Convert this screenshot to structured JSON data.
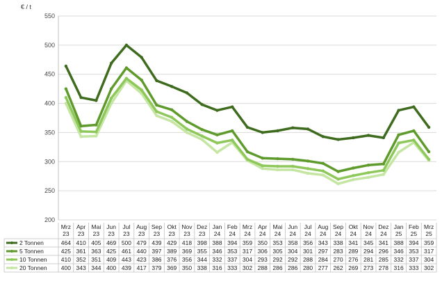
{
  "chart_data": {
    "type": "line",
    "ylabel": "€ / t",
    "ylim": [
      200,
      550
    ],
    "yticks": [
      200,
      250,
      300,
      350,
      400,
      450,
      500,
      550
    ],
    "categories": [
      [
        "Mrz",
        "23"
      ],
      [
        "Apr",
        "23"
      ],
      [
        "Mai",
        "23"
      ],
      [
        "Jun",
        "23"
      ],
      [
        "Jul",
        "23"
      ],
      [
        "Aug",
        "23"
      ],
      [
        "Sep",
        "23"
      ],
      [
        "Okt",
        "23"
      ],
      [
        "Nov",
        "23"
      ],
      [
        "Dez",
        "23"
      ],
      [
        "Jan",
        "24"
      ],
      [
        "Feb",
        "24"
      ],
      [
        "Mrz",
        "24"
      ],
      [
        "Apr",
        "24"
      ],
      [
        "Mai",
        "24"
      ],
      [
        "Jun",
        "24"
      ],
      [
        "Jul",
        "24"
      ],
      [
        "Aug",
        "24"
      ],
      [
        "Sep",
        "24"
      ],
      [
        "Okt",
        "24"
      ],
      [
        "Nov",
        "24"
      ],
      [
        "Dez",
        "24"
      ],
      [
        "Jan",
        "25"
      ],
      [
        "Feb",
        "25"
      ],
      [
        "Mrz",
        "25"
      ]
    ],
    "series": [
      {
        "name": "2 Tonnen",
        "color": "#3f6b1f",
        "values": [
          464,
          410,
          405,
          469,
          500,
          479,
          439,
          429,
          418,
          398,
          388,
          394,
          359,
          350,
          353,
          358,
          356,
          343,
          338,
          341,
          345,
          341,
          388,
          394,
          359
        ]
      },
      {
        "name": "5 Tonnen",
        "color": "#5e9a2c",
        "values": [
          425,
          361,
          363,
          425,
          461,
          440,
          397,
          389,
          369,
          355,
          346,
          353,
          317,
          306,
          305,
          304,
          301,
          297,
          283,
          289,
          294,
          296,
          346,
          353,
          317
        ]
      },
      {
        "name": "10 Tonnen",
        "color": "#8fc85a",
        "values": [
          410,
          352,
          351,
          409,
          443,
          423,
          386,
          376,
          356,
          344,
          332,
          337,
          304,
          293,
          292,
          292,
          288,
          284,
          270,
          276,
          281,
          285,
          332,
          337,
          304
        ]
      },
      {
        "name": "20 Tonnen",
        "color": "#c5e6a3",
        "values": [
          400,
          343,
          344,
          400,
          439,
          417,
          379,
          369,
          350,
          338,
          316,
          333,
          302,
          288,
          286,
          286,
          280,
          277,
          262,
          269,
          273,
          278,
          316,
          333,
          302
        ]
      }
    ]
  }
}
